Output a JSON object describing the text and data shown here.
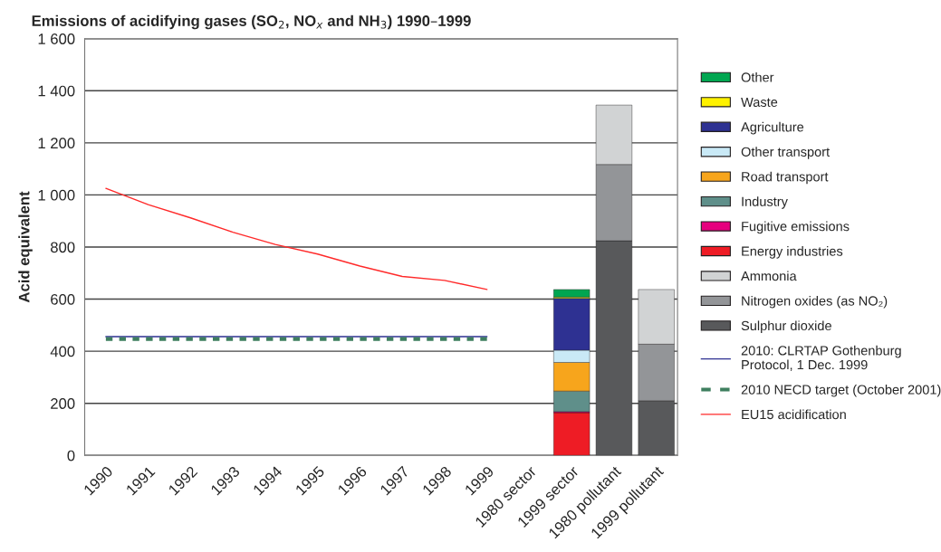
{
  "chart_data": {
    "type": "bar",
    "stacked": true,
    "title": "Emissions of acidifying gases (SO$_{2}$, NO$_{x}$ and NH$_{3}$) 1990–1999",
    "ylabel": "Acid equivalent",
    "categories": [
      "1990",
      "1991",
      "1992",
      "1993",
      "1994",
      "1995",
      "1996",
      "1997",
      "1998",
      "1999",
      "1980 sector",
      "1999 sector",
      "1980 pollutant",
      "1999 pollutant"
    ],
    "series": [
      {
        "name": "Sulphur dioxide",
        "color": "#58595b",
        "values": [
          null,
          null,
          null,
          null,
          null,
          null,
          null,
          null,
          null,
          null,
          null,
          null,
          824,
          210
        ]
      },
      {
        "name": "Nitrogen oxides (as NO₂)",
        "color": "#939598",
        "values": [
          null,
          null,
          null,
          null,
          null,
          null,
          null,
          null,
          null,
          null,
          null,
          null,
          293,
          217
        ]
      },
      {
        "name": "Ammonia",
        "color": "#d1d3d4",
        "values": [
          null,
          null,
          null,
          null,
          null,
          null,
          null,
          null,
          null,
          null,
          null,
          null,
          228,
          210
        ]
      },
      {
        "name": "Energy industries",
        "color": "#ee1c25",
        "values": [
          null,
          null,
          null,
          null,
          null,
          null,
          null,
          null,
          null,
          null,
          null,
          164,
          null,
          null
        ]
      },
      {
        "name": "Fugitive emissions",
        "color": "#e6007e",
        "values": [
          null,
          null,
          null,
          null,
          null,
          null,
          null,
          null,
          null,
          null,
          null,
          4,
          null,
          null
        ]
      },
      {
        "name": "Industry",
        "color": "#5f8f8a",
        "values": [
          null,
          null,
          null,
          null,
          null,
          null,
          null,
          null,
          null,
          null,
          null,
          79,
          null,
          null
        ]
      },
      {
        "name": "Road transport",
        "color": "#f7a51c",
        "values": [
          null,
          null,
          null,
          null,
          null,
          null,
          null,
          null,
          null,
          null,
          null,
          110,
          null,
          null
        ]
      },
      {
        "name": "Other transport",
        "color": "#c9e9f6",
        "values": [
          null,
          null,
          null,
          null,
          null,
          null,
          null,
          null,
          null,
          null,
          null,
          47,
          null,
          null
        ]
      },
      {
        "name": "Agriculture",
        "color": "#2e3192",
        "values": [
          null,
          null,
          null,
          null,
          null,
          null,
          null,
          null,
          null,
          null,
          null,
          199,
          null,
          null
        ]
      },
      {
        "name": "Waste",
        "color": "#fff200",
        "values": [
          null,
          null,
          null,
          null,
          null,
          null,
          null,
          null,
          null,
          null,
          null,
          5,
          null,
          null
        ]
      },
      {
        "name": "Other",
        "color": "#00a651",
        "values": [
          null,
          null,
          null,
          null,
          null,
          null,
          null,
          null,
          null,
          null,
          null,
          29,
          null,
          null
        ]
      },
      {
        "name": "2010: CLRTAP Gothenburg Protocol, 1 Dec. 1999",
        "type": "line",
        "color": "#2e3192",
        "line_style": "solid",
        "values": [
          456,
          456,
          456,
          456,
          456,
          456,
          456,
          456,
          456,
          456,
          null,
          null,
          null,
          null
        ]
      },
      {
        "name": "2010 NECD target (October 2001)",
        "type": "line",
        "color": "#3f7f5f",
        "line_style": "dashed",
        "values": [
          447,
          447,
          447,
          447,
          447,
          447,
          447,
          447,
          447,
          447,
          null,
          null,
          null,
          null
        ]
      },
      {
        "name": "EU15 acidification",
        "type": "line",
        "color": "#ff2a2a",
        "line_style": "solid",
        "values": [
          1025,
          963,
          912,
          857,
          810,
          773,
          727,
          687,
          672,
          637,
          null,
          null,
          null,
          null
        ]
      }
    ],
    "ylim": [
      0,
      1600
    ],
    "yticks": [
      0,
      200,
      400,
      600,
      800,
      {
        "value": 1000,
        "label": "1 000"
      },
      {
        "value": 1200,
        "label": "1 200"
      },
      {
        "value": 1400,
        "label": "1 400"
      },
      {
        "value": 1600,
        "label": "1 600"
      }
    ],
    "grid": "y",
    "legend": "right"
  }
}
